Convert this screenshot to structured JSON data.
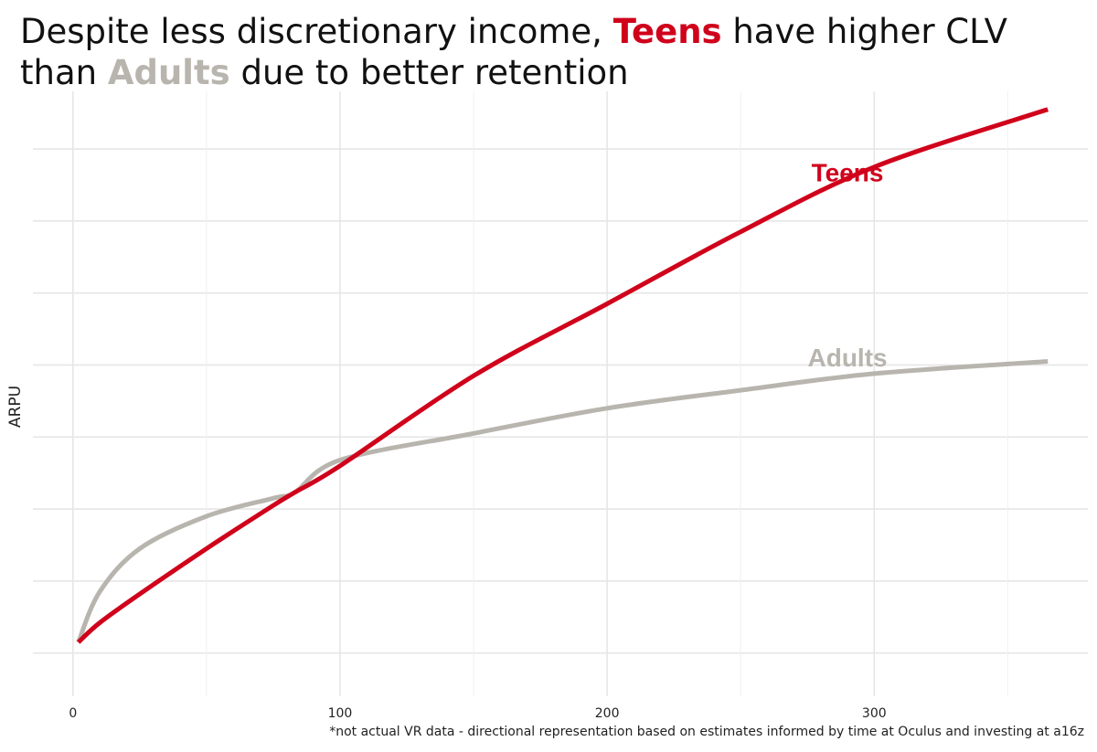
{
  "title": {
    "part1": "Despite less discretionary income, ",
    "highlight1": "Teens",
    "part2": " have higher CLV",
    "part3": "than ",
    "highlight2": "Adults",
    "part4": " due to better retention"
  },
  "footnote": "*not actual VR data - directional representation based on estimates informed by time at Oculus and investing at a16z",
  "colors": {
    "teens": "#d0021b",
    "adults": "#b8b5ae",
    "grid": "#e6e6e6",
    "text": "#111111"
  },
  "chart_data": {
    "type": "line",
    "title": "Despite less discretionary income, Teens have higher CLV than Adults due to better retention",
    "xlabel": "",
    "ylabel": "ARPU",
    "xlim": [
      -15,
      380
    ],
    "ylim": [
      -0.6,
      7.8
    ],
    "x_ticks": [
      0,
      100,
      200,
      300
    ],
    "x_tick_labels": [
      "0",
      "100",
      "200",
      "300"
    ],
    "y_gridlines": [
      0,
      1,
      2,
      3,
      4,
      5,
      6,
      7
    ],
    "y_tick_labels": [],
    "grid": true,
    "series": [
      {
        "name": "Teens",
        "x": [
          2,
          10,
          25,
          50,
          75,
          83,
          100,
          150,
          200,
          250,
          300,
          365
        ],
        "y": [
          0.15,
          0.42,
          0.82,
          1.45,
          2.05,
          2.23,
          2.6,
          3.85,
          4.85,
          5.85,
          6.75,
          7.55
        ],
        "label_position": "upper-right"
      },
      {
        "name": "Adults",
        "x": [
          2,
          10,
          25,
          50,
          75,
          83,
          100,
          150,
          200,
          250,
          300,
          365
        ],
        "y": [
          0.15,
          0.85,
          1.45,
          1.9,
          2.15,
          2.23,
          2.68,
          3.05,
          3.4,
          3.65,
          3.88,
          4.05
        ],
        "label_position": "right"
      }
    ]
  }
}
